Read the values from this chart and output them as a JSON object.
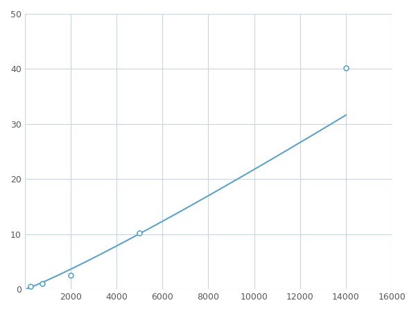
{
  "x": [
    250,
    750,
    2000,
    5000,
    14000
  ],
  "y": [
    0.5,
    1.0,
    2.5,
    10.2,
    40.2
  ],
  "line_color": "#5ba3c9",
  "marker_color": "#5ba3c9",
  "marker_size": 5,
  "line_width": 1.5,
  "xlim": [
    0,
    16000
  ],
  "ylim": [
    0,
    50
  ],
  "xticks": [
    0,
    2000,
    4000,
    6000,
    8000,
    10000,
    12000,
    14000,
    16000
  ],
  "yticks": [
    0,
    10,
    20,
    30,
    40,
    50
  ],
  "grid_color": "#c8d4e0",
  "bg_color": "#ffffff",
  "figsize": [
    6.0,
    4.5
  ],
  "dpi": 100
}
